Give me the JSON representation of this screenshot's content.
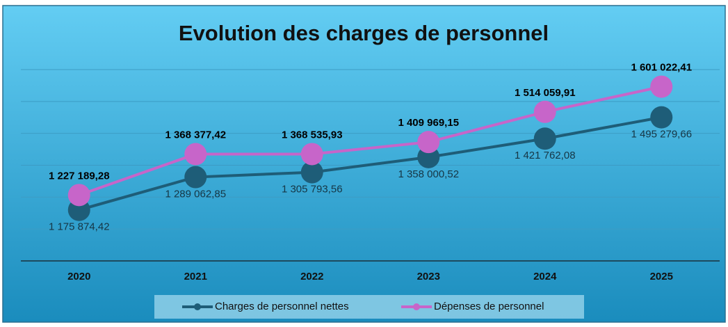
{
  "chart_data": {
    "type": "line",
    "title": "Evolution des charges de personnel",
    "categories": [
      "2020",
      "2021",
      "2022",
      "2023",
      "2024",
      "2025"
    ],
    "series": [
      {
        "name": "Charges de personnel nettes",
        "color": "#1e5d78",
        "values": [
          1175874.42,
          1289062.85,
          1305793.56,
          1358000.52,
          1421762.08,
          1495279.66
        ],
        "value_labels": [
          "1 175 874,42",
          "1 289 062,85",
          "1 305 793,56",
          "1 358 000,52",
          "1 421 762,08",
          "1 495 279,66"
        ]
      },
      {
        "name": "Dépenses de personnel",
        "color": "#c765c9",
        "values": [
          1227189.28,
          1368377.42,
          1368535.93,
          1409969.15,
          1514059.91,
          1601022.41
        ],
        "value_labels": [
          "1 227 189,28",
          "1 368 377,42",
          "1 368 535,93",
          "1 409 969,15",
          "1 514 059,91",
          "1 601 022,41"
        ]
      }
    ],
    "ylim": [
      1000000,
      1660000
    ],
    "yticks": [
      1000000,
      1110000,
      1220000,
      1330000,
      1440000,
      1550000,
      1660000
    ],
    "grid": true
  }
}
